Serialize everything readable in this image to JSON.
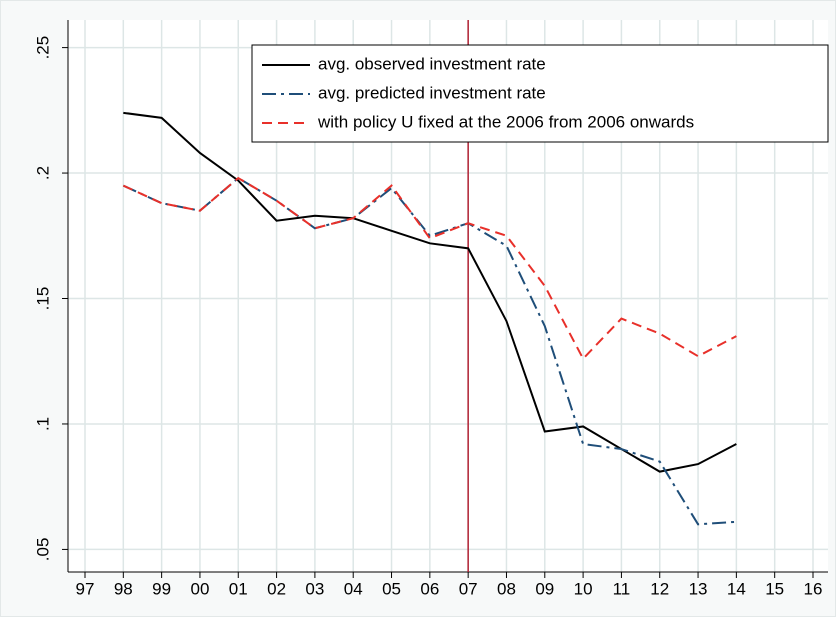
{
  "chart_data": {
    "type": "line",
    "categories": [
      "97",
      "98",
      "99",
      "00",
      "01",
      "02",
      "03",
      "04",
      "05",
      "06",
      "07",
      "08",
      "09",
      "10",
      "11",
      "12",
      "13",
      "14",
      "15",
      "16"
    ],
    "series": [
      {
        "name": "avg. observed investment rate",
        "color": "#000000",
        "dash": "solid",
        "values": [
          null,
          0.224,
          0.222,
          0.208,
          0.197,
          0.181,
          0.183,
          0.182,
          0.177,
          0.172,
          0.17,
          0.141,
          0.097,
          0.099,
          0.09,
          0.081,
          0.084,
          0.092,
          null,
          null
        ]
      },
      {
        "name": "avg. predicted investment rate",
        "color": "#1f4e79",
        "dash": "dashdot",
        "values": [
          null,
          0.195,
          0.188,
          0.185,
          0.198,
          0.189,
          0.178,
          0.182,
          0.194,
          0.175,
          0.18,
          0.171,
          0.139,
          0.092,
          0.09,
          0.085,
          0.06,
          0.061,
          null,
          null
        ]
      },
      {
        "name": " with policy U fixed at the 2006 from 2006 onwards",
        "color": "#e8302a",
        "dash": "dashed",
        "values": [
          null,
          0.195,
          0.188,
          0.185,
          0.198,
          0.189,
          0.178,
          0.182,
          0.195,
          0.174,
          0.18,
          0.175,
          0.155,
          0.126,
          0.142,
          0.136,
          0.127,
          0.135,
          null,
          null
        ]
      }
    ],
    "ylim": [
      0.041,
      0.261
    ],
    "yticks": [
      {
        "value": 0.05,
        "label": ".05"
      },
      {
        "value": 0.1,
        "label": ".1"
      },
      {
        "value": 0.15,
        "label": ".15"
      },
      {
        "value": 0.2,
        "label": ".2"
      },
      {
        "value": 0.25,
        "label": ".25"
      }
    ],
    "grid": true,
    "reference_line": {
      "x": "07",
      "color": "#b22234"
    },
    "legend_position": "top-right"
  }
}
